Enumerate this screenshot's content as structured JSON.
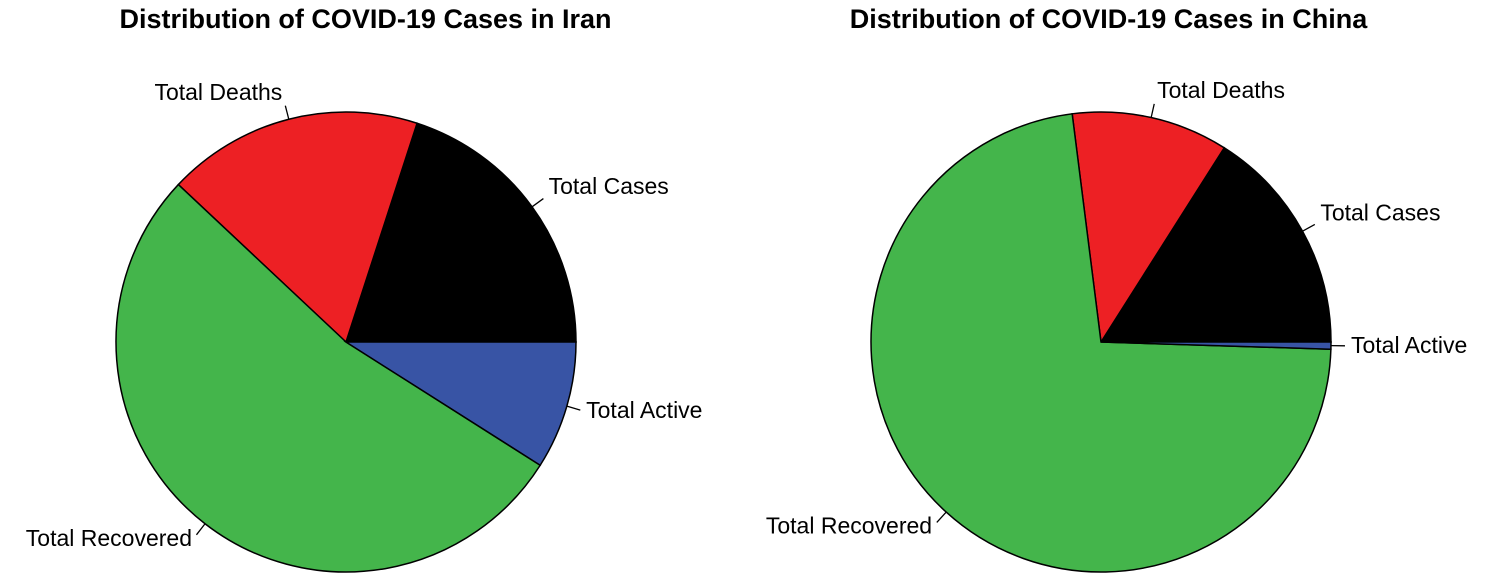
{
  "chart_data": [
    {
      "type": "pie",
      "title": "Distribution of COVID-19 Cases in Iran",
      "start_angle_deg": 0,
      "direction": "counterclockwise",
      "slices": [
        {
          "label": "Total Cases",
          "value": 0.2,
          "color": "#000000"
        },
        {
          "label": "Total Deaths",
          "value": 0.18,
          "color": "#ed2024"
        },
        {
          "label": "Total Recovered",
          "value": 0.53,
          "color": "#44b54b"
        },
        {
          "label": "Total Active",
          "value": 0.09,
          "color": "#3854a5"
        }
      ]
    },
    {
      "type": "pie",
      "title": "Distribution of COVID-19 Cases in China",
      "start_angle_deg": 0,
      "direction": "counterclockwise",
      "slices": [
        {
          "label": "Total Cases",
          "value": 0.16,
          "color": "#000000"
        },
        {
          "label": "Total Deaths",
          "value": 0.11,
          "color": "#ed2024"
        },
        {
          "label": "Total Recovered",
          "value": 0.725,
          "color": "#44b54b"
        },
        {
          "label": "Total Active",
          "value": 0.005,
          "color": "#3854a5"
        }
      ]
    }
  ]
}
